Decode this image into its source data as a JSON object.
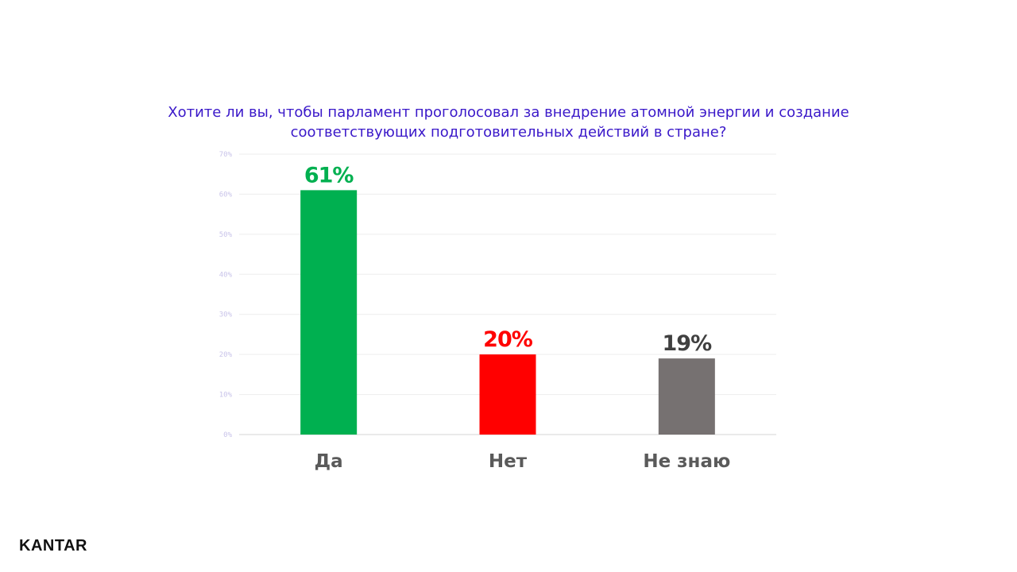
{
  "chart_data": {
    "type": "bar",
    "title_lines": [
      "Хотите ли вы, чтобы парламент проголосовал за внедрение атомной энергии и создание",
      "соответствующих подготовительных действий в стране?"
    ],
    "categories": [
      "Да",
      "Нет",
      "Не знаю"
    ],
    "values": [
      61,
      20,
      19
    ],
    "value_labels": [
      "61%",
      "20%",
      "19%"
    ],
    "colors": [
      "#00b050",
      "#ff0000",
      "#767171"
    ],
    "label_colors": [
      "#00b050",
      "#ff0000",
      "#404040"
    ],
    "y_ticks": [
      "0%",
      "10%",
      "20%",
      "30%",
      "40%",
      "50%",
      "60%",
      "70%"
    ],
    "ylim": [
      0,
      70
    ],
    "grid": true,
    "legend": "none"
  },
  "footer": {
    "brand": "KANTAR"
  }
}
